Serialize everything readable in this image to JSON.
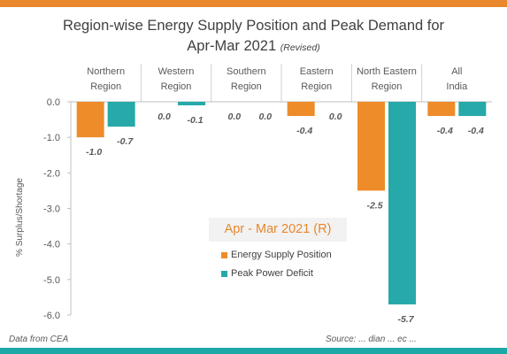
{
  "title": {
    "line1": "Region-wise Energy Supply Position and Peak Demand for",
    "line2": "Apr-Mar 2021",
    "line2_note": "(Revised)"
  },
  "footer": {
    "left": "Data from CEA",
    "right": "Source: ... dian ... ec ..."
  },
  "legend": {
    "title": "Apr - Mar 2021 (R)"
  },
  "colors": {
    "energy": "#ee8c2a",
    "peak": "#26a9a8",
    "bar_top": "#e8872b",
    "bar_bottom": "#1ba8a6"
  },
  "chart_data": {
    "type": "bar",
    "categories": [
      [
        "Northern",
        "Region"
      ],
      [
        "Western",
        "Region"
      ],
      [
        "Southern",
        "Region"
      ],
      [
        "Eastern",
        "Region"
      ],
      [
        "North Eastern",
        "Region"
      ],
      [
        "All",
        "India"
      ]
    ],
    "series": [
      {
        "name": "Energy Supply Position",
        "values": [
          -1.0,
          0.0,
          0.0,
          -0.4,
          -2.5,
          -0.4
        ],
        "labels": [
          "-1.0",
          "0.0",
          "0.0",
          "-0.4",
          "-2.5",
          "-0.4"
        ]
      },
      {
        "name": "Peak Power Deficit",
        "values": [
          -0.7,
          -0.1,
          0.0,
          0.0,
          -5.7,
          -0.4
        ],
        "labels": [
          "-0.7",
          "-0.1",
          "0.0",
          "0.0",
          "-5.7",
          "-0.4"
        ]
      }
    ],
    "ylabel": "% Surplus/Shortage",
    "ylim": [
      -6.0,
      0.0
    ],
    "yticks": [
      "0.0",
      "-1.0",
      "-2.0",
      "-3.0",
      "-4.0",
      "-5.0",
      "-6.0"
    ],
    "grid": false,
    "legend_position": "center"
  }
}
